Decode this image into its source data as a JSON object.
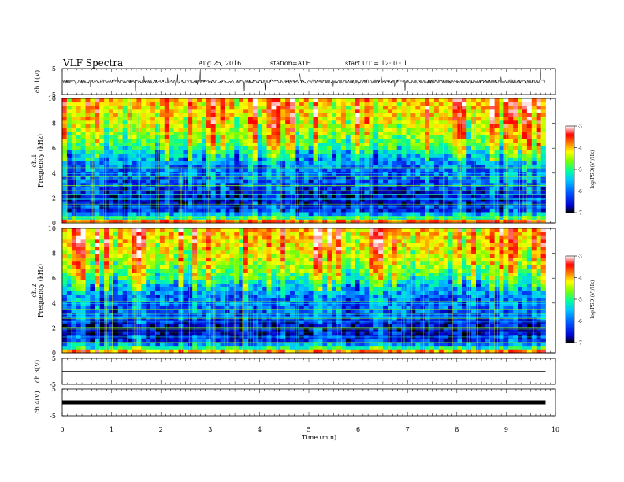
{
  "header": {
    "title": "VLF  Spectra",
    "date": "Aug.25, 2016",
    "station": "station=ATH",
    "start": "start  UT  =    12: 0   : 1"
  },
  "chart_data": {
    "type": "heatmap",
    "xlabel": "Time  (min)",
    "xlim": [
      0,
      10
    ],
    "xticks": [
      "0",
      "1",
      "2",
      "3",
      "4",
      "5",
      "6",
      "7",
      "8",
      "9",
      "10"
    ],
    "panels": [
      {
        "id": "ch1_wave",
        "type": "line",
        "ylabel": "ch.1(V)",
        "ylim": [
          -5,
          5
        ],
        "yticks": [
          "5",
          "-5"
        ]
      },
      {
        "id": "ch1_spec",
        "type": "heatmap",
        "ylabel_top": "ch.1",
        "ylabel": "Frequency  (kHz)",
        "ylim": [
          0,
          10
        ],
        "yticks": [
          "0",
          "2",
          "4",
          "6",
          "8",
          "10"
        ],
        "colorbar": {
          "label": "log(PSD)(V²/Hz)",
          "range": [
            -7,
            -3
          ],
          "ticks": [
            "-3",
            "-4",
            "-5",
            "-6",
            "-7"
          ]
        }
      },
      {
        "id": "ch2_spec",
        "type": "heatmap",
        "ylabel_top": "ch.2",
        "ylabel": "Frequency  (kHz)",
        "ylim": [
          0,
          10
        ],
        "yticks": [
          "0",
          "2",
          "4",
          "6",
          "8",
          "10"
        ],
        "colorbar": {
          "label": "log(PSD)(V²/Hz)",
          "range": [
            -7,
            -3
          ],
          "ticks": [
            "-3",
            "-4",
            "-5",
            "-6",
            "-7"
          ]
        }
      },
      {
        "id": "ch3_wave",
        "type": "line",
        "ylabel": "ch.3(V)",
        "ylim": [
          -5,
          5
        ],
        "yticks": [
          "5",
          "-5"
        ]
      },
      {
        "id": "ch4_wave",
        "type": "line",
        "ylabel": "ch.4(V)",
        "ylim": [
          -5,
          5
        ],
        "yticks": [
          "5",
          "-5"
        ]
      }
    ],
    "data_end_min": 9.8,
    "spectral_profile_logPSD": [
      {
        "f_khz": 0.0,
        "v": -3.0
      },
      {
        "f_khz": 0.3,
        "v": -5.0
      },
      {
        "f_khz": 1.0,
        "v": -6.3
      },
      {
        "f_khz": 2.0,
        "v": -6.6
      },
      {
        "f_khz": 3.0,
        "v": -6.2
      },
      {
        "f_khz": 4.5,
        "v": -6.0
      },
      {
        "f_khz": 5.5,
        "v": -5.6
      },
      {
        "f_khz": 6.0,
        "v": -5.1
      },
      {
        "f_khz": 7.0,
        "v": -4.7
      },
      {
        "f_khz": 8.0,
        "v": -4.4
      },
      {
        "f_khz": 9.0,
        "v": -4.2
      },
      {
        "f_khz": 10.0,
        "v": -4.1
      }
    ],
    "colormap": [
      "#000000",
      "#0000cc",
      "#0050ff",
      "#00c8ff",
      "#00ff9c",
      "#80ff00",
      "#ffff00",
      "#ff8000",
      "#ff0000",
      "#ffffff"
    ]
  }
}
